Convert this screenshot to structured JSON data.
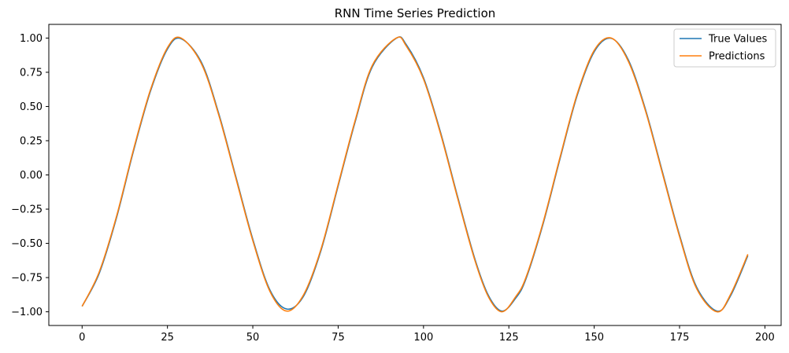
{
  "chart_data": {
    "type": "line",
    "title": "RNN Time Series Prediction",
    "xlabel": "",
    "ylabel": "",
    "xlim": [
      -9.75,
      204.75
    ],
    "ylim": [
      -1.1,
      1.1
    ],
    "x_ticks": [
      0,
      25,
      50,
      75,
      100,
      125,
      150,
      175,
      200
    ],
    "x_tick_labels": [
      "0",
      "25",
      "50",
      "75",
      "100",
      "125",
      "150",
      "175",
      "200"
    ],
    "y_ticks": [
      1.0,
      0.75,
      0.5,
      0.25,
      0.0,
      -0.25,
      -0.5,
      -0.75,
      -1.0
    ],
    "y_tick_labels": [
      "1.00",
      "0.75",
      "0.50",
      "0.25",
      "0.00",
      "−0.25",
      "−0.50",
      "−0.75",
      "−1.00"
    ],
    "grid": false,
    "legend_position": "top-right",
    "x": [
      0,
      5,
      10,
      15,
      20,
      25,
      29,
      35,
      40,
      45,
      50,
      55,
      60,
      65,
      70,
      75,
      80,
      85,
      92,
      95,
      100,
      105,
      110,
      115,
      119,
      123,
      127,
      130,
      135,
      140,
      145,
      150,
      155,
      160,
      165,
      170,
      175,
      180,
      186,
      190,
      195
    ],
    "series": [
      {
        "name": "True Values",
        "color": "#1f77b4",
        "values": [
          -0.96,
          -0.72,
          -0.32,
          0.17,
          0.61,
          0.92,
          0.995,
          0.82,
          0.45,
          -0.01,
          -0.47,
          -0.84,
          -0.98,
          -0.88,
          -0.55,
          -0.08,
          0.39,
          0.79,
          0.998,
          0.95,
          0.71,
          0.31,
          -0.16,
          -0.61,
          -0.88,
          -0.995,
          -0.9,
          -0.76,
          -0.36,
          0.12,
          0.58,
          0.9,
          0.998,
          0.84,
          0.48,
          0.02,
          -0.44,
          -0.82,
          -0.995,
          -0.88,
          -0.59
        ]
      },
      {
        "name": "Predictions",
        "color": "#ff7f0e",
        "values": [
          -0.96,
          -0.71,
          -0.31,
          0.18,
          0.62,
          0.93,
          1.0,
          0.81,
          0.44,
          -0.02,
          -0.48,
          -0.85,
          -0.995,
          -0.87,
          -0.54,
          -0.07,
          0.4,
          0.8,
          1.0,
          0.94,
          0.7,
          0.3,
          -0.17,
          -0.62,
          -0.89,
          -1.0,
          -0.89,
          -0.75,
          -0.35,
          0.13,
          0.59,
          0.91,
          1.0,
          0.83,
          0.47,
          0.01,
          -0.45,
          -0.83,
          -1.0,
          -0.87,
          -0.58
        ]
      }
    ]
  }
}
